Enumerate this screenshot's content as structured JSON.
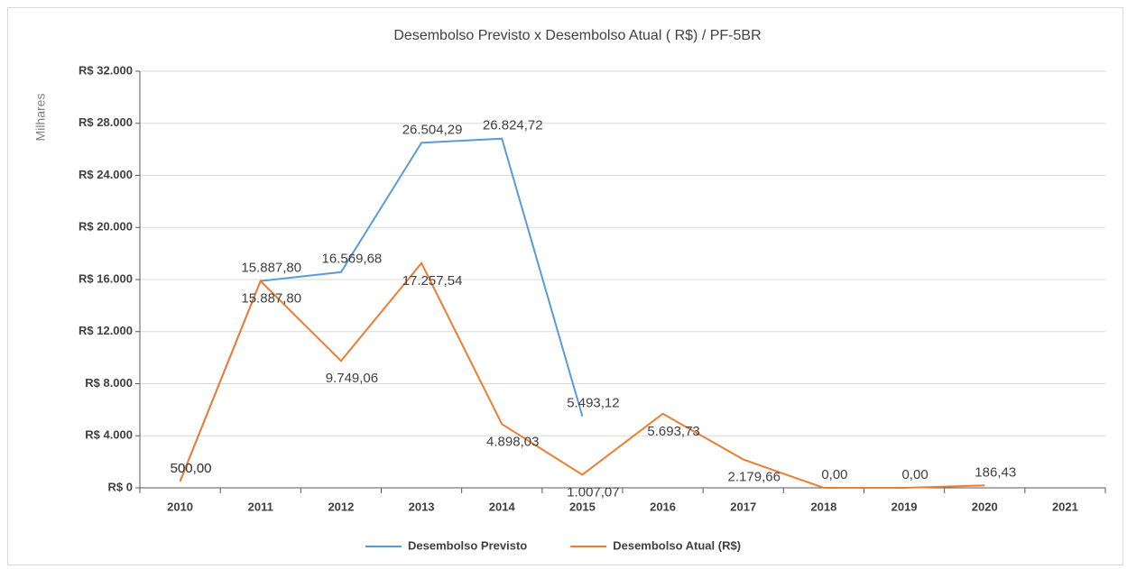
{
  "chart_data": {
    "type": "line",
    "title": "Desembolso Previsto x Desembolso Atual ( R$) / PF-5BR",
    "y_label": "Milhares",
    "categories": [
      "2010",
      "2011",
      "2012",
      "2013",
      "2014",
      "2015",
      "2016",
      "2017",
      "2018",
      "2019",
      "2020",
      "2021"
    ],
    "series": [
      {
        "name": "Desembolso Previsto",
        "color": "#5b9bd5",
        "values": [
          500,
          15887.8,
          16569.68,
          26504.29,
          26824.72,
          5493.12,
          null,
          null,
          null,
          null,
          null,
          null
        ],
        "value_labels": [
          "500,00",
          "15.887,80",
          "16.569,68",
          "26.504,29",
          "26.824,72",
          "5.493,12",
          null,
          null,
          null,
          null,
          null,
          null
        ]
      },
      {
        "name": "Desembolso Atual (R$)",
        "color": "#ed7d31",
        "values": [
          500,
          15887.8,
          9749.06,
          17257.54,
          4898.03,
          1007.07,
          5693.73,
          2179.66,
          0,
          0,
          186.43,
          null
        ],
        "value_labels": [
          "500,00",
          "15.887,80",
          "9.749,06",
          "17.257,54",
          "4.898,03",
          "1.007,07",
          "5.693,73",
          "2.179,66",
          "0,00",
          "0,00",
          "186,43",
          null
        ]
      }
    ],
    "ylim": [
      0,
      32000
    ],
    "yticks": [
      {
        "value": 0,
        "label": "R$ 0"
      },
      {
        "value": 4000,
        "label": "R$ 4.000"
      },
      {
        "value": 8000,
        "label": "R$ 8.000"
      },
      {
        "value": 12000,
        "label": "R$ 12.000"
      },
      {
        "value": 16000,
        "label": "R$ 16.000"
      },
      {
        "value": 20000,
        "label": "R$ 20.000"
      },
      {
        "value": 24000,
        "label": "R$ 24.000"
      },
      {
        "value": 28000,
        "label": "R$ 28.000"
      },
      {
        "value": 32000,
        "label": "R$ 32.000"
      }
    ],
    "grid": true,
    "legend": "bottom"
  }
}
